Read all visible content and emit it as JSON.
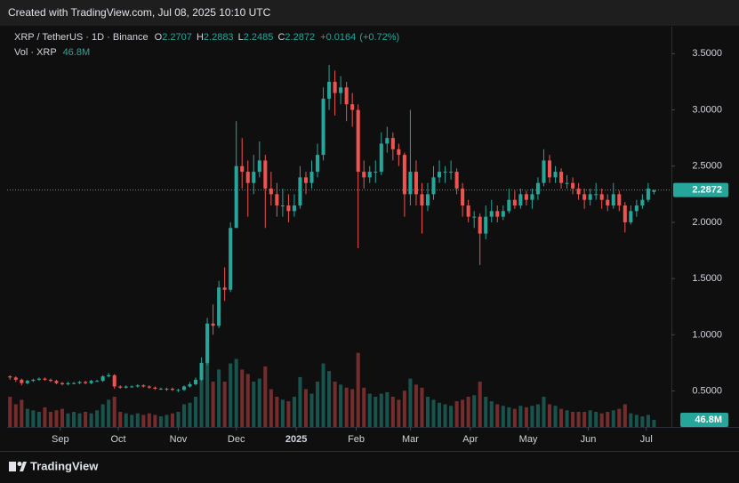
{
  "header": "Created with TradingView.com, Jul 08, 2025 10:10 UTC",
  "footer": "TradingView",
  "chart_data": {
    "type": "candlestick",
    "legend": {
      "symbol": "XRP / TetherUS · 1D · Binance",
      "o": "O",
      "h": "H",
      "l": "L",
      "c": "C",
      "change": "+0.0164",
      "change_pct": "(+0.72%)",
      "volume_title": "Vol · XRP"
    },
    "up_color": "#26a69a",
    "down_color": "#ef5350",
    "ylim": [
      0.18,
      3.74
    ],
    "yticks": [
      {
        "value": 0.5,
        "label": "0.5000"
      },
      {
        "value": 1,
        "label": "1.0000"
      },
      {
        "value": 1.5,
        "label": "1.5000"
      },
      {
        "value": 2,
        "label": "2.0000"
      },
      {
        "value": 2.5,
        "label": "2.5000"
      },
      {
        "value": 3,
        "label": "3.0000"
      },
      {
        "value": 3.5,
        "label": "3.5000"
      }
    ],
    "xlim": [
      -0.5,
      114
    ],
    "xticks": [
      {
        "value": 8.67,
        "label": "Sep"
      },
      {
        "value": 18.67,
        "label": "Oct"
      },
      {
        "value": 29,
        "label": "Nov"
      },
      {
        "value": 39,
        "label": "Dec"
      },
      {
        "value": 49.33,
        "label": "2025"
      },
      {
        "value": 59.67,
        "label": "Feb"
      },
      {
        "value": 69,
        "label": "Mar"
      },
      {
        "value": 79.33,
        "label": "Apr"
      },
      {
        "value": 89.33,
        "label": "May"
      },
      {
        "value": 99.67,
        "label": "Jun"
      },
      {
        "value": 109.67,
        "label": "Jul"
      }
    ],
    "volume_lim": [
      0,
      1000
    ],
    "last_volume_label": "46.8M",
    "candles": [
      [
        0.63,
        0.64,
        0.6,
        0.62
      ],
      [
        0.62,
        0.63,
        0.58,
        0.6
      ],
      [
        0.6,
        0.61,
        0.55,
        0.57
      ],
      [
        0.57,
        0.6,
        0.56,
        0.59
      ],
      [
        0.59,
        0.61,
        0.58,
        0.6
      ],
      [
        0.6,
        0.62,
        0.59,
        0.61
      ],
      [
        0.61,
        0.62,
        0.59,
        0.6
      ],
      [
        0.6,
        0.61,
        0.58,
        0.59
      ],
      [
        0.59,
        0.6,
        0.56,
        0.57
      ],
      [
        0.57,
        0.58,
        0.55,
        0.56
      ],
      [
        0.56,
        0.58,
        0.55,
        0.57
      ],
      [
        0.57,
        0.58,
        0.56,
        0.57
      ],
      [
        0.57,
        0.59,
        0.56,
        0.58
      ],
      [
        0.58,
        0.59,
        0.56,
        0.57
      ],
      [
        0.57,
        0.6,
        0.56,
        0.59
      ],
      [
        0.59,
        0.6,
        0.58,
        0.59
      ],
      [
        0.59,
        0.64,
        0.58,
        0.63
      ],
      [
        0.63,
        0.66,
        0.62,
        0.64
      ],
      [
        0.64,
        0.65,
        0.52,
        0.54
      ],
      [
        0.54,
        0.55,
        0.52,
        0.53
      ],
      [
        0.53,
        0.55,
        0.52,
        0.54
      ],
      [
        0.54,
        0.55,
        0.53,
        0.54
      ],
      [
        0.54,
        0.56,
        0.53,
        0.55
      ],
      [
        0.55,
        0.56,
        0.53,
        0.54
      ],
      [
        0.54,
        0.55,
        0.52,
        0.53
      ],
      [
        0.53,
        0.54,
        0.51,
        0.52
      ],
      [
        0.52,
        0.53,
        0.51,
        0.52
      ],
      [
        0.52,
        0.53,
        0.5,
        0.52
      ],
      [
        0.52,
        0.53,
        0.5,
        0.51
      ],
      [
        0.51,
        0.52,
        0.49,
        0.51
      ],
      [
        0.51,
        0.55,
        0.5,
        0.54
      ],
      [
        0.54,
        0.58,
        0.53,
        0.56
      ],
      [
        0.56,
        0.62,
        0.55,
        0.6
      ],
      [
        0.6,
        0.8,
        0.59,
        0.75
      ],
      [
        0.75,
        1.15,
        0.73,
        1.1
      ],
      [
        1.1,
        1.27,
        1.0,
        1.08
      ],
      [
        1.08,
        1.48,
        1.06,
        1.42
      ],
      [
        1.42,
        1.6,
        1.3,
        1.4
      ],
      [
        1.4,
        2.0,
        1.38,
        1.95
      ],
      [
        1.95,
        2.9,
        1.95,
        2.5
      ],
      [
        2.5,
        2.75,
        2.3,
        2.45
      ],
      [
        2.45,
        2.55,
        2.05,
        2.35
      ],
      [
        2.35,
        2.6,
        2.25,
        2.45
      ],
      [
        2.45,
        2.72,
        2.4,
        2.55
      ],
      [
        2.55,
        2.6,
        1.95,
        2.3
      ],
      [
        2.3,
        2.45,
        2.15,
        2.25
      ],
      [
        2.25,
        2.35,
        2.05,
        2.15
      ],
      [
        2.15,
        2.3,
        2.05,
        2.15
      ],
      [
        2.15,
        2.25,
        2.0,
        2.1
      ],
      [
        2.1,
        2.25,
        2.05,
        2.15
      ],
      [
        2.15,
        2.5,
        2.12,
        2.4
      ],
      [
        2.4,
        2.45,
        2.25,
        2.35
      ],
      [
        2.35,
        2.55,
        2.3,
        2.45
      ],
      [
        2.45,
        2.7,
        2.4,
        2.6
      ],
      [
        2.6,
        3.2,
        2.55,
        3.1
      ],
      [
        3.1,
        3.4,
        3.0,
        3.25
      ],
      [
        3.25,
        3.35,
        2.95,
        3.15
      ],
      [
        3.15,
        3.3,
        3.05,
        3.2
      ],
      [
        3.2,
        3.25,
        2.9,
        3.05
      ],
      [
        3.05,
        3.15,
        2.85,
        3.0
      ],
      [
        3.0,
        3.05,
        1.77,
        2.45
      ],
      [
        2.45,
        2.55,
        2.3,
        2.4
      ],
      [
        2.4,
        2.5,
        2.35,
        2.45
      ],
      [
        2.45,
        2.55,
        2.35,
        2.45
      ],
      [
        2.45,
        2.8,
        2.42,
        2.7
      ],
      [
        2.7,
        2.85,
        2.62,
        2.75
      ],
      [
        2.75,
        2.8,
        2.55,
        2.65
      ],
      [
        2.65,
        2.7,
        2.5,
        2.6
      ],
      [
        2.6,
        2.62,
        2.05,
        2.25
      ],
      [
        2.25,
        3.0,
        2.15,
        2.45
      ],
      [
        2.45,
        2.55,
        2.15,
        2.25
      ],
      [
        2.25,
        2.35,
        1.9,
        2.15
      ],
      [
        2.15,
        2.35,
        2.1,
        2.25
      ],
      [
        2.25,
        2.5,
        2.2,
        2.4
      ],
      [
        2.4,
        2.55,
        2.35,
        2.45
      ],
      [
        2.45,
        2.5,
        2.35,
        2.45
      ],
      [
        2.45,
        2.55,
        2.38,
        2.45
      ],
      [
        2.45,
        2.48,
        2.25,
        2.3
      ],
      [
        2.3,
        2.35,
        2.05,
        2.15
      ],
      [
        2.15,
        2.2,
        2.0,
        2.05
      ],
      [
        2.05,
        2.1,
        1.95,
        2.05
      ],
      [
        2.05,
        2.08,
        1.62,
        1.9
      ],
      [
        1.9,
        2.15,
        1.85,
        2.05
      ],
      [
        2.05,
        2.2,
        2.0,
        2.1
      ],
      [
        2.1,
        2.15,
        2.0,
        2.05
      ],
      [
        2.05,
        2.15,
        2.02,
        2.1
      ],
      [
        2.1,
        2.3,
        2.08,
        2.2
      ],
      [
        2.2,
        2.28,
        2.12,
        2.15
      ],
      [
        2.15,
        2.3,
        2.12,
        2.25
      ],
      [
        2.25,
        2.28,
        2.15,
        2.2
      ],
      [
        2.2,
        2.3,
        2.12,
        2.25
      ],
      [
        2.25,
        2.4,
        2.2,
        2.35
      ],
      [
        2.35,
        2.65,
        2.32,
        2.55
      ],
      [
        2.55,
        2.6,
        2.35,
        2.4
      ],
      [
        2.4,
        2.5,
        2.35,
        2.45
      ],
      [
        2.45,
        2.48,
        2.3,
        2.35
      ],
      [
        2.35,
        2.42,
        2.3,
        2.35
      ],
      [
        2.35,
        2.4,
        2.25,
        2.3
      ],
      [
        2.3,
        2.35,
        2.2,
        2.25
      ],
      [
        2.25,
        2.3,
        2.12,
        2.2
      ],
      [
        2.2,
        2.3,
        2.15,
        2.25
      ],
      [
        2.25,
        2.35,
        2.2,
        2.25
      ],
      [
        2.25,
        2.3,
        2.12,
        2.2
      ],
      [
        2.2,
        2.25,
        2.1,
        2.15
      ],
      [
        2.15,
        2.35,
        2.12,
        2.25
      ],
      [
        2.25,
        2.28,
        2.1,
        2.15
      ],
      [
        2.15,
        2.18,
        1.91,
        2.0
      ],
      [
        2.0,
        2.15,
        1.98,
        2.1
      ],
      [
        2.1,
        2.2,
        2.05,
        2.15
      ],
      [
        2.15,
        2.25,
        2.12,
        2.2
      ],
      [
        2.2,
        2.35,
        2.18,
        2.3
      ],
      [
        2.2707,
        2.2883,
        2.2485,
        2.2872
      ]
    ],
    "volume": [
      200,
      150,
      180,
      120,
      110,
      100,
      130,
      100,
      110,
      120,
      90,
      100,
      90,
      100,
      90,
      110,
      150,
      180,
      200,
      100,
      90,
      80,
      90,
      80,
      90,
      80,
      70,
      80,
      90,
      100,
      150,
      160,
      200,
      350,
      450,
      300,
      380,
      300,
      420,
      450,
      380,
      350,
      300,
      320,
      400,
      250,
      200,
      180,
      170,
      200,
      330,
      250,
      220,
      300,
      420,
      370,
      300,
      280,
      260,
      250,
      490,
      260,
      220,
      200,
      220,
      230,
      200,
      180,
      240,
      320,
      280,
      260,
      200,
      180,
      160,
      150,
      140,
      170,
      180,
      200,
      210,
      300,
      200,
      170,
      150,
      140,
      130,
      120,
      140,
      130,
      140,
      150,
      200,
      150,
      140,
      120,
      110,
      100,
      100,
      100,
      110,
      100,
      90,
      100,
      110,
      120,
      150,
      90,
      80,
      70,
      80,
      46.8
    ]
  }
}
